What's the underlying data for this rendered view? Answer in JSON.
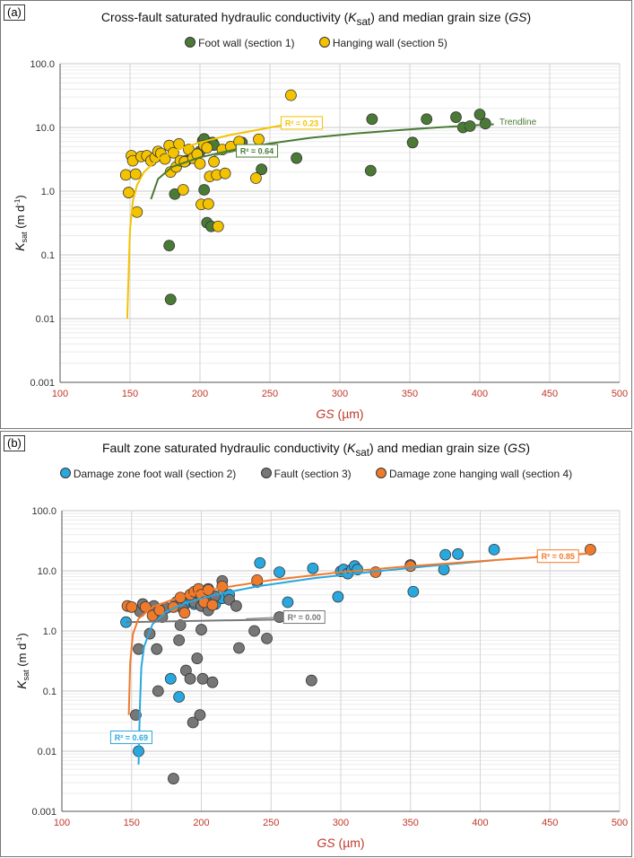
{
  "chart_data": [
    {
      "type": "scatter",
      "panel_label": "(a)",
      "title_parts": [
        "Cross-fault saturated hydraulic conductivity (",
        "K",
        "sat",
        ") and median grain size (",
        "GS",
        ")"
      ],
      "xlabel_parts": [
        "GS",
        " (µm)"
      ],
      "ylabel_parts": [
        "K",
        "sat",
        "  (m d",
        "-1",
        ")"
      ],
      "xlim": [
        100,
        500
      ],
      "ylim": [
        0.001,
        100
      ],
      "yscale": "log",
      "grid": true,
      "legend_position": "top",
      "x_ticks": [
        "100",
        "150",
        "200",
        "250",
        "300",
        "350",
        "400",
        "450",
        "500"
      ],
      "y_ticks": [
        "100.0",
        "10.0",
        "1.0",
        "0.1",
        "0.01",
        "0.001"
      ],
      "series": [
        {
          "name": "Foot wall (section 1)",
          "color": "#4a7a35",
          "points": [
            [
              178,
              0.14
            ],
            [
              179,
              0.02
            ],
            [
              182,
              0.9
            ],
            [
              190,
              3.0
            ],
            [
              197,
              3.5
            ],
            [
              200,
              4.2
            ],
            [
              202,
              6.2
            ],
            [
              203,
              6.6
            ],
            [
              203,
              1.05
            ],
            [
              205,
              0.32
            ],
            [
              208,
              0.28
            ],
            [
              209,
              5.8
            ],
            [
              210,
              5.3
            ],
            [
              230,
              5.8
            ],
            [
              244,
              2.2
            ],
            [
              269,
              3.3
            ],
            [
              322,
              2.1
            ],
            [
              323,
              13.5
            ],
            [
              352,
              5.8
            ],
            [
              362,
              13.5
            ],
            [
              383,
              14.5
            ],
            [
              388,
              10.0
            ],
            [
              393,
              10.5
            ],
            [
              400,
              16.0
            ],
            [
              404,
              11.5
            ]
          ],
          "trendline": [
            [
              165,
              0.75
            ],
            [
              170,
              1.55
            ],
            [
              180,
              2.4
            ],
            [
              200,
              3.4
            ],
            [
              225,
              4.5
            ],
            [
              250,
              5.6
            ],
            [
              280,
              6.9
            ],
            [
              310,
              8.0
            ],
            [
              340,
              9.0
            ],
            [
              370,
              10.0
            ],
            [
              400,
              10.9
            ],
            [
              410,
              11.2
            ]
          ],
          "r2_label": "R² = 0.64"
        },
        {
          "name": "Hanging wall (section 5)",
          "color": "#f4c300",
          "points": [
            [
              147,
              1.8
            ],
            [
              149,
              0.95
            ],
            [
              151,
              3.6
            ],
            [
              152,
              3.0
            ],
            [
              154,
              1.85
            ],
            [
              155,
              0.47
            ],
            [
              158,
              3.5
            ],
            [
              162,
              3.6
            ],
            [
              165,
              3.0
            ],
            [
              168,
              3.4
            ],
            [
              170,
              4.2
            ],
            [
              172,
              3.9
            ],
            [
              175,
              3.2
            ],
            [
              178,
              5.2
            ],
            [
              179,
              2.0
            ],
            [
              181,
              4.0
            ],
            [
              183,
              2.4
            ],
            [
              185,
              5.5
            ],
            [
              186,
              3.0
            ],
            [
              188,
              1.05
            ],
            [
              189,
              2.9
            ],
            [
              192,
              4.5
            ],
            [
              195,
              3.3
            ],
            [
              198,
              3.8
            ],
            [
              200,
              2.7
            ],
            [
              201,
              0.62
            ],
            [
              203,
              5.2
            ],
            [
              205,
              4.8
            ],
            [
              206,
              0.63
            ],
            [
              207,
              1.7
            ],
            [
              210,
              2.9
            ],
            [
              212,
              1.8
            ],
            [
              213,
              0.28
            ],
            [
              216,
              4.5
            ],
            [
              218,
              1.9
            ],
            [
              222,
              5.0
            ],
            [
              228,
              6.0
            ],
            [
              240,
              1.6
            ],
            [
              242,
              6.5
            ],
            [
              265,
              32.0
            ]
          ],
          "trendline": [
            [
              148,
              0.01
            ],
            [
              149,
              0.05
            ],
            [
              150,
              0.25
            ],
            [
              152,
              0.7
            ],
            [
              155,
              1.25
            ],
            [
              160,
              2.0
            ],
            [
              170,
              3.2
            ],
            [
              185,
              4.6
            ],
            [
              200,
              5.8
            ],
            [
              220,
              7.5
            ],
            [
              245,
              9.5
            ],
            [
              265,
              11.5
            ]
          ],
          "r2_label": "R² = 0.23"
        }
      ],
      "annotations": [
        "Trendline"
      ]
    },
    {
      "type": "scatter",
      "panel_label": "(b)",
      "title_parts": [
        "Fault zone saturated hydraulic conductivity (",
        "K",
        "sat",
        ") and median grain size (",
        "GS",
        ")"
      ],
      "xlabel_parts": [
        "GS",
        " (µm)"
      ],
      "ylabel_parts": [
        "K",
        "sat",
        "  (m d",
        "-1",
        ")"
      ],
      "xlim": [
        100,
        500
      ],
      "ylim": [
        0.001,
        100
      ],
      "yscale": "log",
      "grid": true,
      "legend_position": "top",
      "x_ticks": [
        "100",
        "150",
        "200",
        "250",
        "300",
        "350",
        "400",
        "450",
        "500"
      ],
      "y_ticks": [
        "100.0",
        "10.0",
        "1.0",
        "0.1",
        "0.01",
        "0.001"
      ],
      "series": [
        {
          "name": "Damage zone foot wall (section 2)",
          "color": "#29a8df",
          "points": [
            [
              146,
              1.4
            ],
            [
              155,
              0.01
            ],
            [
              178,
              0.16
            ],
            [
              184,
              0.08
            ],
            [
              190,
              3.0
            ],
            [
              193,
              3.5
            ],
            [
              195,
              2.8
            ],
            [
              200,
              4.2
            ],
            [
              205,
              5.0
            ],
            [
              210,
              2.8
            ],
            [
              215,
              3.5
            ],
            [
              220,
              4.0
            ],
            [
              240,
              6.5
            ],
            [
              242,
              13.5
            ],
            [
              256,
              9.5
            ],
            [
              262,
              3.0
            ],
            [
              280,
              11.0
            ],
            [
              298,
              3.7
            ],
            [
              300,
              9.8
            ],
            [
              302,
              10.5
            ],
            [
              305,
              9.0
            ],
            [
              308,
              10.5
            ],
            [
              310,
              12.0
            ],
            [
              312,
              10.5
            ],
            [
              350,
              12.5
            ],
            [
              352,
              4.5
            ],
            [
              374,
              10.5
            ],
            [
              375,
              18.5
            ],
            [
              384,
              19.0
            ],
            [
              410,
              22.5
            ]
          ],
          "trendline": [
            [
              155,
              0.006
            ],
            [
              156,
              0.06
            ],
            [
              157,
              0.25
            ],
            [
              159,
              0.55
            ],
            [
              165,
              1.3
            ],
            [
              175,
              2.1
            ],
            [
              190,
              3.0
            ],
            [
              210,
              4.0
            ],
            [
              240,
              5.5
            ],
            [
              280,
              7.5
            ],
            [
              320,
              9.5
            ],
            [
              360,
              11.8
            ],
            [
              410,
              15.0
            ]
          ],
          "r2_label": "R² = 0.69"
        },
        {
          "name": "Fault (section 3)",
          "color": "#777777",
          "points": [
            [
              153,
              0.04
            ],
            [
              155,
              0.5
            ],
            [
              156,
              2.1
            ],
            [
              158,
              2.8
            ],
            [
              163,
              0.9
            ],
            [
              166,
              2.6
            ],
            [
              168,
              0.5
            ],
            [
              169,
              0.1
            ],
            [
              172,
              1.7
            ],
            [
              175,
              2.4
            ],
            [
              180,
              0.0035
            ],
            [
              182,
              3.0
            ],
            [
              184,
              0.7
            ],
            [
              185,
              1.25
            ],
            [
              187,
              2.3
            ],
            [
              189,
              0.22
            ],
            [
              192,
              0.16
            ],
            [
              194,
              0.03
            ],
            [
              195,
              3.0
            ],
            [
              197,
              0.35
            ],
            [
              199,
              4.0
            ],
            [
              199,
              0.04
            ],
            [
              200,
              1.05
            ],
            [
              200,
              2.6
            ],
            [
              201,
              0.16
            ],
            [
              203,
              3.5
            ],
            [
              205,
              2.2
            ],
            [
              208,
              0.14
            ],
            [
              210,
              3.8
            ],
            [
              215,
              6.8
            ],
            [
              220,
              3.3
            ],
            [
              225,
              2.6
            ],
            [
              227,
              0.52
            ],
            [
              238,
              1.0
            ],
            [
              247,
              0.75
            ],
            [
              256,
              1.7
            ],
            [
              279,
              0.15
            ]
          ],
          "trendline": [
            [
              146,
              1.4
            ],
            [
              255,
              1.55
            ]
          ],
          "r2_label": "R² = 0.00"
        },
        {
          "name": "Damage zone hanging wall (section 4)",
          "color": "#f07a2c",
          "points": [
            [
              147,
              2.6
            ],
            [
              150,
              2.5
            ],
            [
              160,
              2.5
            ],
            [
              165,
              1.8
            ],
            [
              170,
              2.2
            ],
            [
              180,
              2.5
            ],
            [
              185,
              3.6
            ],
            [
              188,
              2.0
            ],
            [
              192,
              4.0
            ],
            [
              195,
              4.5
            ],
            [
              198,
              5.0
            ],
            [
              200,
              4.0
            ],
            [
              202,
              3.0
            ],
            [
              205,
              4.8
            ],
            [
              208,
              2.7
            ],
            [
              215,
              5.5
            ],
            [
              240,
              7.0
            ],
            [
              325,
              9.5
            ],
            [
              350,
              12.0
            ],
            [
              479,
              22.5
            ]
          ],
          "trendline": [
            [
              148,
              0.04
            ],
            [
              149,
              0.3
            ],
            [
              151,
              0.9
            ],
            [
              155,
              1.6
            ],
            [
              165,
              2.5
            ],
            [
              185,
              3.7
            ],
            [
              210,
              5.0
            ],
            [
              250,
              7.0
            ],
            [
              300,
              9.5
            ],
            [
              350,
              12.0
            ],
            [
              400,
              14.5
            ],
            [
              450,
              17.5
            ],
            [
              480,
              19.5
            ]
          ],
          "r2_label": "R² = 0.85"
        }
      ]
    }
  ]
}
